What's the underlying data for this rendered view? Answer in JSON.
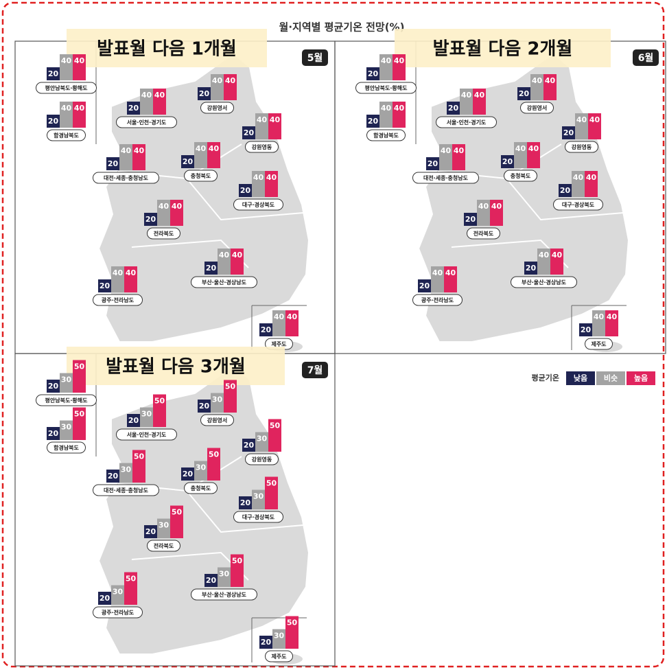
{
  "title": "월·지역별 평균기온 전망(%)",
  "panels": [
    {
      "banner": "발표월 다음 1개월",
      "month": "5월",
      "regions": [
        {
          "name": "평안남북도·황해도",
          "values": [
            20,
            40,
            40
          ]
        },
        {
          "name": "함경남북도",
          "values": [
            20,
            40,
            40
          ]
        },
        {
          "name": "서울·인천·경기도",
          "values": [
            20,
            40,
            40
          ]
        },
        {
          "name": "강원영서",
          "values": [
            20,
            40,
            40
          ]
        },
        {
          "name": "강원영동",
          "values": [
            20,
            40,
            40
          ]
        },
        {
          "name": "충청북도",
          "values": [
            20,
            40,
            40
          ]
        },
        {
          "name": "대전·세종·충청남도",
          "values": [
            20,
            40,
            40
          ]
        },
        {
          "name": "대구·경상북도",
          "values": [
            20,
            40,
            40
          ]
        },
        {
          "name": "전라북도",
          "values": [
            20,
            40,
            40
          ]
        },
        {
          "name": "부산·울산·경상남도",
          "values": [
            20,
            40,
            40
          ]
        },
        {
          "name": "광주·전라남도",
          "values": [
            20,
            40,
            40
          ]
        },
        {
          "name": "제주도",
          "values": [
            20,
            40,
            40
          ]
        }
      ]
    },
    {
      "banner": "발표월 다음 2개월",
      "month": "6월",
      "regions": [
        {
          "name": "평안남북도·황해도",
          "values": [
            20,
            40,
            40
          ]
        },
        {
          "name": "함경남북도",
          "values": [
            20,
            40,
            40
          ]
        },
        {
          "name": "서울·인천·경기도",
          "values": [
            20,
            40,
            40
          ]
        },
        {
          "name": "강원영서",
          "values": [
            20,
            40,
            40
          ]
        },
        {
          "name": "강원영동",
          "values": [
            20,
            40,
            40
          ]
        },
        {
          "name": "충청북도",
          "values": [
            20,
            40,
            40
          ]
        },
        {
          "name": "대전·세종·충청남도",
          "values": [
            20,
            40,
            40
          ]
        },
        {
          "name": "대구·경상북도",
          "values": [
            20,
            40,
            40
          ]
        },
        {
          "name": "전라북도",
          "values": [
            20,
            40,
            40
          ]
        },
        {
          "name": "부산·울산·경상남도",
          "values": [
            20,
            40,
            40
          ]
        },
        {
          "name": "광주·전라남도",
          "values": [
            20,
            40,
            40
          ]
        },
        {
          "name": "제주도",
          "values": [
            20,
            40,
            40
          ]
        }
      ]
    },
    {
      "banner": "발표월 다음 3개월",
      "month": "7월",
      "regions": [
        {
          "name": "평안남북도·황해도",
          "values": [
            20,
            30,
            50
          ]
        },
        {
          "name": "함경남북도",
          "values": [
            20,
            30,
            50
          ]
        },
        {
          "name": "서울·인천·경기도",
          "values": [
            20,
            30,
            50
          ]
        },
        {
          "name": "강원영서",
          "values": [
            20,
            30,
            50
          ]
        },
        {
          "name": "강원영동",
          "values": [
            20,
            30,
            50
          ]
        },
        {
          "name": "충청북도",
          "values": [
            20,
            30,
            50
          ]
        },
        {
          "name": "대전·세종·충청남도",
          "values": [
            20,
            30,
            50
          ]
        },
        {
          "name": "대구·경상북도",
          "values": [
            20,
            30,
            50
          ]
        },
        {
          "name": "전라북도",
          "values": [
            20,
            30,
            50
          ]
        },
        {
          "name": "부산·울산·경상남도",
          "values": [
            20,
            30,
            50
          ]
        },
        {
          "name": "광주·전라남도",
          "values": [
            20,
            30,
            50
          ]
        },
        {
          "name": "제주도",
          "values": [
            20,
            30,
            50
          ]
        }
      ]
    }
  ],
  "legend": {
    "label": "평균기온",
    "items": [
      {
        "name": "낮음",
        "color": "#1f2452"
      },
      {
        "name": "비슷",
        "color": "#a3a3a3"
      },
      {
        "name": "높음",
        "color": "#e0245e"
      }
    ]
  }
}
